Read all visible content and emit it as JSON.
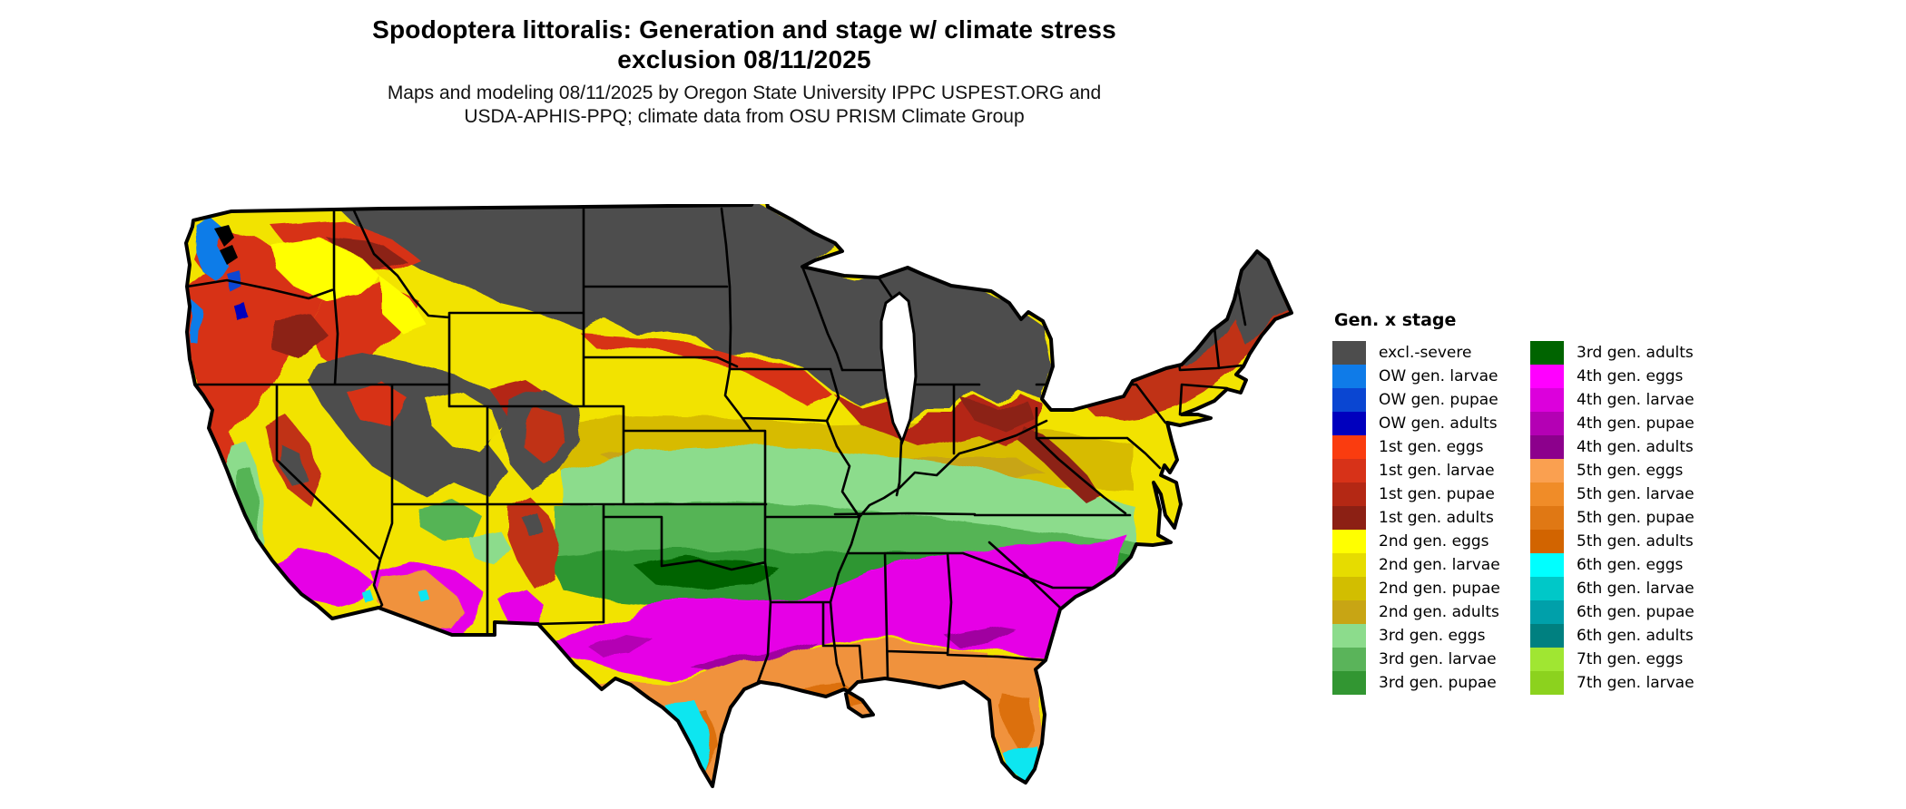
{
  "title": {
    "line1": "Spodoptera littoralis: Generation and stage w/ climate stress",
    "line2": "exclusion 08/11/2025"
  },
  "subtitle": {
    "line1": "Maps and modeling 08/11/2025 by Oregon State University IPPC USPEST.ORG and",
    "line2": "USDA-APHIS-PPQ; climate data from OSU PRISM Climate Group"
  },
  "legend": {
    "title": "Gen. x stage",
    "columns": [
      {
        "items": [
          {
            "label": "excl.-severe",
            "color": "#4D4D4D"
          },
          {
            "label": "OW gen. larvae",
            "color": "#0F7BE8"
          },
          {
            "label": "OW gen. pupae",
            "color": "#0A46D2"
          },
          {
            "label": "OW gen. adults",
            "color": "#0000BE"
          },
          {
            "label": "1st gen. eggs",
            "color": "#FA3C0F"
          },
          {
            "label": "1st gen. larvae",
            "color": "#D73218"
          },
          {
            "label": "1st gen. pupae",
            "color": "#B42814"
          },
          {
            "label": "1st gen. adults",
            "color": "#8C2014"
          },
          {
            "label": "2nd gen. eggs",
            "color": "#FFFF00"
          },
          {
            "label": "2nd gen. larvae",
            "color": "#E6DC00"
          },
          {
            "label": "2nd gen. pupae",
            "color": "#D2BE00"
          },
          {
            "label": "2nd gen. adults",
            "color": "#C8A514"
          },
          {
            "label": "3rd gen. eggs",
            "color": "#8CDC8C"
          },
          {
            "label": "3rd gen. larvae",
            "color": "#5AB45A"
          },
          {
            "label": "3rd gen. pupae",
            "color": "#329632"
          }
        ]
      },
      {
        "items": [
          {
            "label": "3rd gen. adults",
            "color": "#006400"
          },
          {
            "label": "4th gen. eggs",
            "color": "#FF00FF"
          },
          {
            "label": "4th gen. larvae",
            "color": "#DC00DC"
          },
          {
            "label": "4th gen. pupae",
            "color": "#B400B4"
          },
          {
            "label": "4th gen. adults",
            "color": "#8C008C"
          },
          {
            "label": "5th gen. eggs",
            "color": "#FAA050"
          },
          {
            "label": "5th gen. larvae",
            "color": "#F08C28"
          },
          {
            "label": "5th gen. pupae",
            "color": "#E07814"
          },
          {
            "label": "5th gen. adults",
            "color": "#D26400"
          },
          {
            "label": "6th gen. eggs",
            "color": "#00FFFF"
          },
          {
            "label": "6th gen. larvae",
            "color": "#00C8C8"
          },
          {
            "label": "6th gen. pupae",
            "color": "#00A0AA"
          },
          {
            "label": "6th gen. adults",
            "color": "#008080"
          },
          {
            "label": "7th gen. eggs",
            "color": "#A0E632"
          },
          {
            "label": "7th gen. larvae",
            "color": "#8CD21E"
          }
        ]
      }
    ]
  },
  "map": {
    "description": "Contiguous United States raster map colored by insect generation and life stage with state borders"
  }
}
